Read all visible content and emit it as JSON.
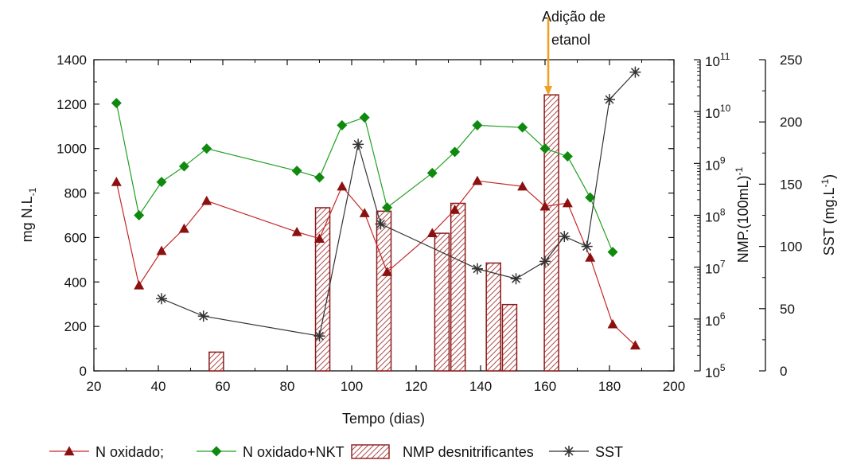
{
  "chart_data": {
    "type": "line",
    "title": "",
    "annotation": "Adição de\netanol",
    "annotation_x": 161,
    "xlabel": "Tempo (dias)",
    "xlim": [
      20,
      200
    ],
    "xticks": [
      20,
      40,
      60,
      80,
      100,
      120,
      140,
      160,
      180,
      200
    ],
    "y_left": {
      "label": "mg N.L",
      "label_sub": "-1",
      "lim": [
        0,
        1400
      ],
      "ticks": [
        0,
        200,
        400,
        600,
        800,
        1000,
        1200,
        1400
      ]
    },
    "y_mid": {
      "label": "NMP.(100mL)",
      "label_sup": "-1",
      "scale": "log",
      "lim_exp": [
        5,
        11
      ],
      "ticks": [
        {
          "base": "10",
          "exp": "5"
        },
        {
          "base": "10",
          "exp": "6"
        },
        {
          "base": "10",
          "exp": "7"
        },
        {
          "base": "10",
          "exp": "8"
        },
        {
          "base": "10",
          "exp": "9"
        },
        {
          "base": "10",
          "exp": "10"
        },
        {
          "base": "10",
          "exp": "11"
        }
      ]
    },
    "y_right": {
      "label": "SST (mg.L",
      "label_sup": "-1",
      "label_end": ")",
      "lim": [
        0,
        250
      ],
      "ticks": [
        0,
        50,
        100,
        150,
        200,
        250
      ]
    },
    "grid": false,
    "legend_position": "bottom",
    "series": [
      {
        "name": "N oxidado;",
        "axis": "left",
        "kind": "line",
        "marker": "triangle",
        "color": "#c62828",
        "marker_color": "#8b1010",
        "x": [
          27,
          34,
          41,
          48,
          55,
          83,
          90,
          97,
          104,
          111,
          125,
          132,
          139,
          153,
          160,
          167,
          174,
          181,
          188
        ],
        "y": [
          850,
          385,
          540,
          640,
          765,
          625,
          595,
          830,
          710,
          445,
          620,
          725,
          855,
          830,
          740,
          755,
          510,
          210,
          115
        ]
      },
      {
        "name": "N oxidado+NKT",
        "axis": "left",
        "kind": "line",
        "marker": "diamond",
        "color": "#22a022",
        "marker_color": "#0f8a0f",
        "x": [
          27,
          34,
          41,
          48,
          55,
          83,
          90,
          97,
          104,
          111,
          125,
          132,
          139,
          153,
          160,
          167,
          174,
          181
        ],
        "y": [
          1205,
          700,
          850,
          920,
          1000,
          900,
          870,
          1105,
          1140,
          735,
          890,
          985,
          1105,
          1095,
          1000,
          965,
          780,
          535
        ]
      },
      {
        "name": "NMP desnitrificantes",
        "axis": "mid",
        "kind": "bar",
        "color": "#8b1a1a",
        "x": [
          58,
          91,
          110,
          128,
          133,
          144,
          149,
          162
        ],
        "y": [
          230000,
          140000000,
          120000000,
          45000000,
          170000000,
          12000000,
          1900000,
          21000000000
        ]
      },
      {
        "name": "SST",
        "axis": "right",
        "kind": "line",
        "marker": "asterisk",
        "color": "#333333",
        "x": [
          41,
          54,
          90,
          102,
          109,
          139,
          151,
          160,
          166,
          173,
          180,
          188
        ],
        "y": [
          58,
          44,
          28,
          182,
          118,
          82,
          74,
          88,
          108,
          100,
          218,
          240
        ]
      }
    ]
  }
}
